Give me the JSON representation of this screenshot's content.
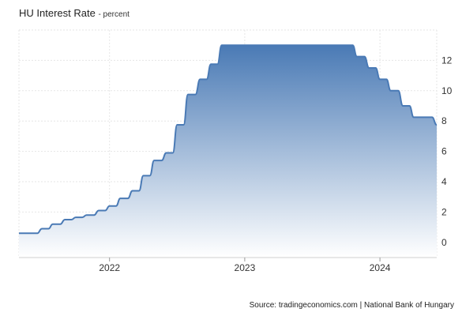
{
  "title": "HU Interest Rate",
  "unit_label": "- percent",
  "source": "Source: tradingeconomics.com | National Bank of Hungary",
  "colors": {
    "line": "#4a7ab5",
    "fill_top": "#4a7ab5",
    "fill_bottom": "#ffffff",
    "grid": "#e6e6e6"
  },
  "chart_data": {
    "type": "area",
    "title": "HU Interest Rate",
    "ylabel": "percent",
    "y_axis_side": "right",
    "ylim": [
      -1,
      14
    ],
    "yticks": [
      0,
      2,
      4,
      6,
      8,
      10,
      12
    ],
    "xlim": [
      2021.33,
      2024.42
    ],
    "xticks": [
      {
        "value": 2022,
        "label": "2022"
      },
      {
        "value": 2023,
        "label": "2023"
      },
      {
        "value": 2024,
        "label": "2024"
      }
    ],
    "grid": true,
    "series": [
      {
        "x": [
          2021.33,
          2021.5,
          2021.58,
          2021.67,
          2021.75,
          2021.83,
          2021.92,
          2022.0,
          2022.08,
          2022.17,
          2022.25,
          2022.33,
          2022.42,
          2022.5,
          2022.58,
          2022.67,
          2022.75,
          2022.83,
          2022.92,
          2023.0,
          2023.25,
          2023.5,
          2023.75,
          2023.83,
          2023.92,
          2024.0,
          2024.08,
          2024.17,
          2024.25,
          2024.33,
          2024.42
        ],
        "values": [
          0.6,
          0.9,
          1.2,
          1.5,
          1.65,
          1.8,
          2.1,
          2.4,
          2.9,
          3.4,
          4.4,
          5.4,
          5.9,
          7.75,
          9.75,
          10.75,
          11.75,
          13.0,
          13.0,
          13.0,
          13.0,
          13.0,
          13.0,
          12.25,
          11.5,
          10.75,
          10.0,
          9.0,
          8.25,
          8.25,
          7.75
        ]
      }
    ]
  }
}
